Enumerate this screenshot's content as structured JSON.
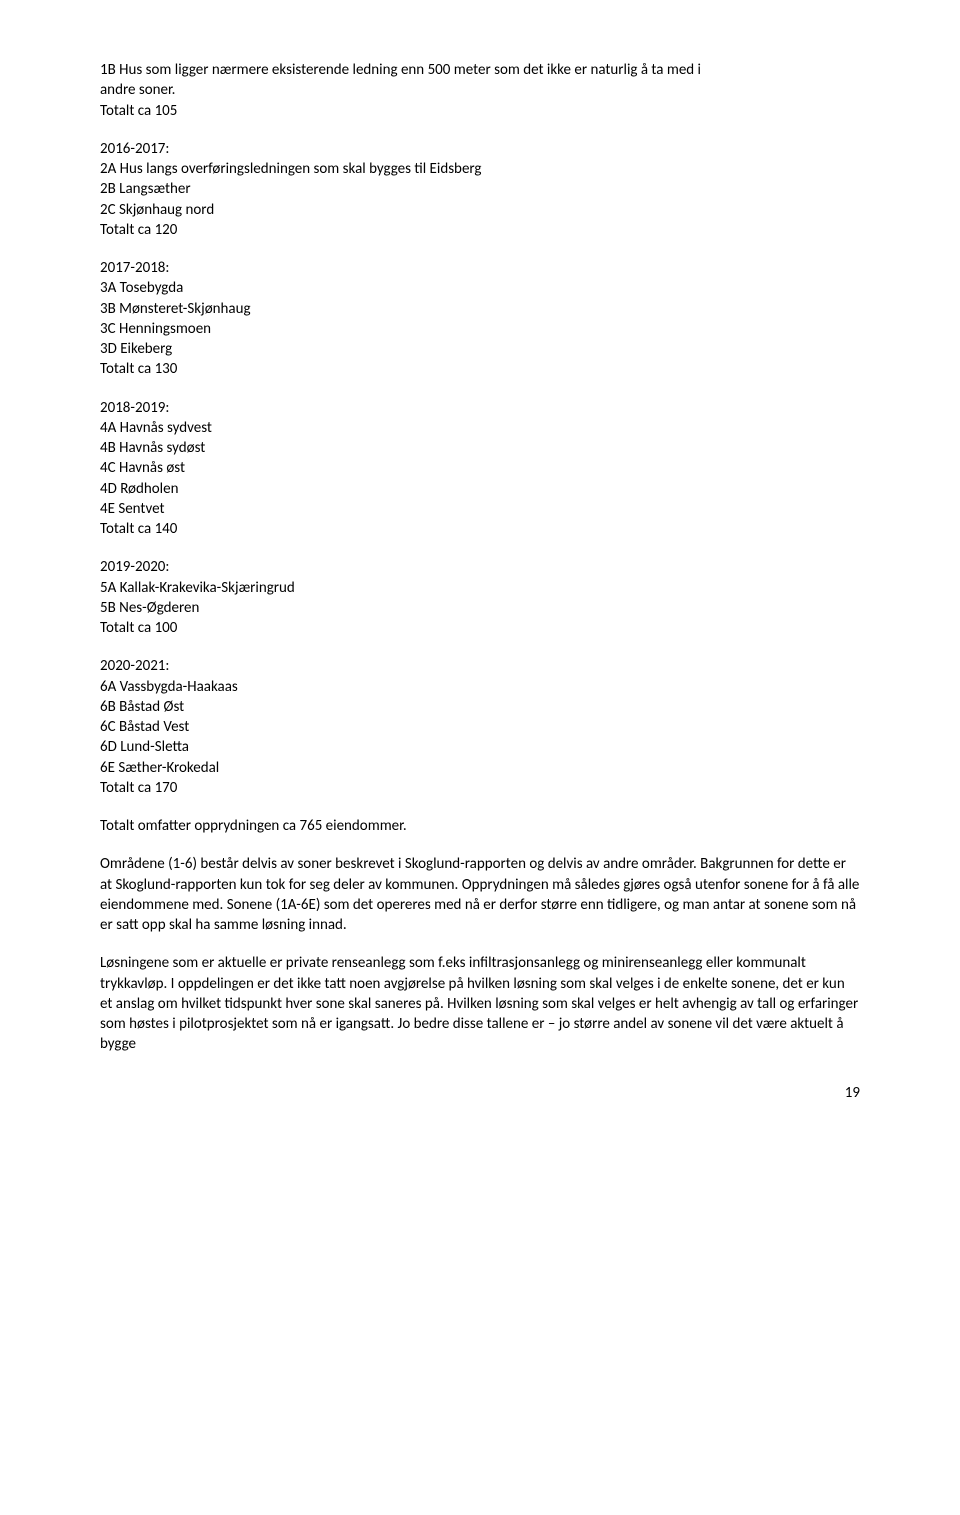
{
  "para1_l1": "1B Hus som ligger nærmere eksisterende ledning enn 500 meter som det ikke er naturlig å ta med i",
  "para1_l2": "andre soner.",
  "para1_l3": "Totalt ca 105",
  "para2_l1": "2016-2017:",
  "para2_l2": "2A Hus langs overføringsledningen som skal bygges til Eidsberg",
  "para2_l3": "2B Langsæther",
  "para2_l4": "2C Skjønhaug nord",
  "para2_l5": "Totalt ca 120",
  "para3_l1": "2017-2018:",
  "para3_l2": "3A Tosebygda",
  "para3_l3": "3B Mønsteret-Skjønhaug",
  "para3_l4": "3C Henningsmoen",
  "para3_l5": "3D Eikeberg",
  "para3_l6": "Totalt ca 130",
  "para4_l1": "2018-2019:",
  "para4_l2": "4A Havnås sydvest",
  "para4_l3": "4B Havnås sydøst",
  "para4_l4": "4C Havnås øst",
  "para4_l5": "4D Rødholen",
  "para4_l6": "4E Sentvet",
  "para4_l7": "Totalt ca 140",
  "para5_l1": "2019-2020:",
  "para5_l2": "5A Kallak-Krakevika-Skjæringrud",
  "para5_l3": "5B Nes-Øgderen",
  "para5_l4": "Totalt ca 100",
  "para6_l1": "2020-2021:",
  "para6_l2": "6A Vassbygda-Haakaas",
  "para6_l3": "6B Båstad Øst",
  "para6_l4": "6C Båstad Vest",
  "para6_l5": "6D Lund-Sletta",
  "para6_l6": "6E Sæther-Krokedal",
  "para6_l7": "Totalt ca 170",
  "para7": "Totalt omfatter opprydningen ca 765 eiendommer.",
  "para8": "Områdene (1-6) består delvis av soner beskrevet i Skoglund-rapporten og delvis av andre områder. Bakgrunnen for dette er at Skoglund-rapporten kun tok for seg deler av kommunen. Opprydningen må således gjøres også utenfor sonene for å få alle eiendommene med. Sonene (1A-6E) som det opereres med nå er derfor større enn tidligere, og man antar at sonene som nå er satt opp skal ha samme løsning innad.",
  "para9": "Løsningene som er aktuelle er private renseanlegg som f.eks infiltrasjonsanlegg og minirenseanlegg eller kommunalt trykkavløp. I oppdelingen er det ikke tatt noen avgjørelse på hvilken løsning som skal velges i de enkelte sonene, det er kun et anslag om hvilket tidspunkt hver sone skal saneres på. Hvilken løsning som skal velges er helt avhengig av tall og erfaringer som høstes i pilotprosjektet som nå er igangsatt. Jo bedre disse tallene er – jo større andel av sonene vil det være aktuelt å bygge",
  "page_number": "19"
}
